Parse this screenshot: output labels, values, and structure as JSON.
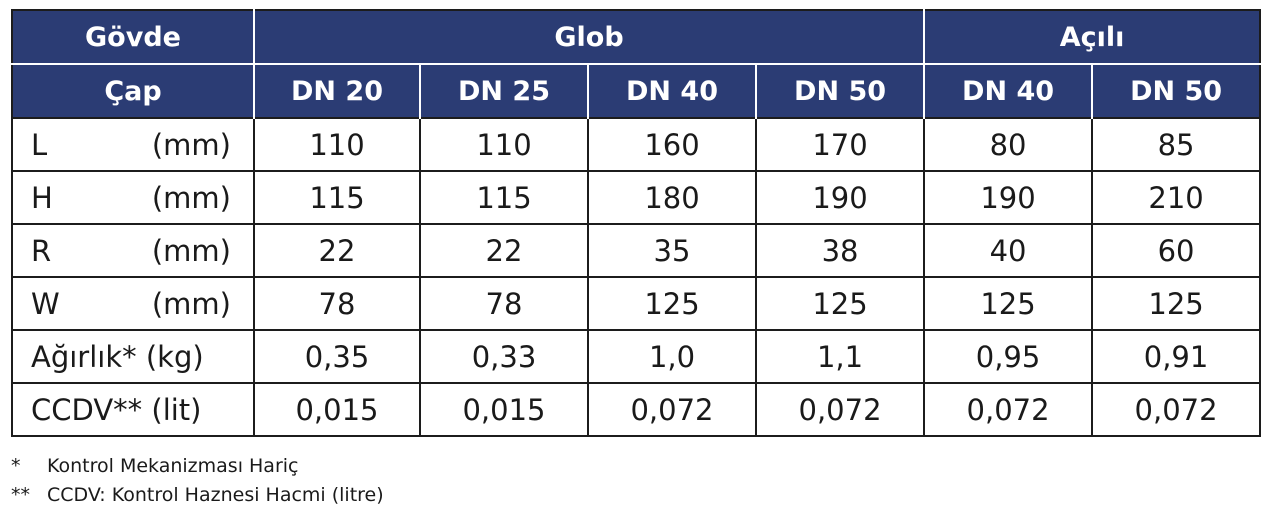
{
  "header": {
    "body_label": "Gövde",
    "diameter_label": "Çap",
    "groups": [
      {
        "label": "Glob",
        "span": 4
      },
      {
        "label": "Açılı",
        "span": 2
      }
    ],
    "sizes": [
      "DN 20",
      "DN 25",
      "DN 40",
      "DN 50",
      "DN 40",
      "DN 50"
    ]
  },
  "rows": [
    {
      "symbol": "L",
      "unit": "(mm)",
      "values": [
        "110",
        "110",
        "160",
        "170",
        "80",
        "85"
      ]
    },
    {
      "symbol": "H",
      "unit": "(mm)",
      "values": [
        "115",
        "115",
        "180",
        "190",
        "190",
        "210"
      ]
    },
    {
      "symbol": "R",
      "unit": "(mm)",
      "values": [
        "22",
        "22",
        "35",
        "38",
        "40",
        "60"
      ]
    },
    {
      "symbol": "W",
      "unit": "(mm)",
      "values": [
        "78",
        "78",
        "125",
        "125",
        "125",
        "125"
      ]
    },
    {
      "label": "Ağırlık* (kg)",
      "values": [
        "0,35",
        "0,33",
        "1,0",
        "1,1",
        "0,95",
        "0,91"
      ]
    },
    {
      "label": "CCDV** (lit)",
      "values": [
        "0,015",
        "0,015",
        "0,072",
        "0,072",
        "0,072",
        "0,072"
      ]
    }
  ],
  "footnotes": [
    {
      "mark": "*",
      "text": "Kontrol Mekanizması Hariç"
    },
    {
      "mark": "**",
      "text": "CCDV: Kontrol Haznesi Hacmi (litre)"
    }
  ],
  "colors": {
    "header_bg": "#2b3c74",
    "header_text": "#ffffff",
    "border": "#1c1c1c"
  }
}
